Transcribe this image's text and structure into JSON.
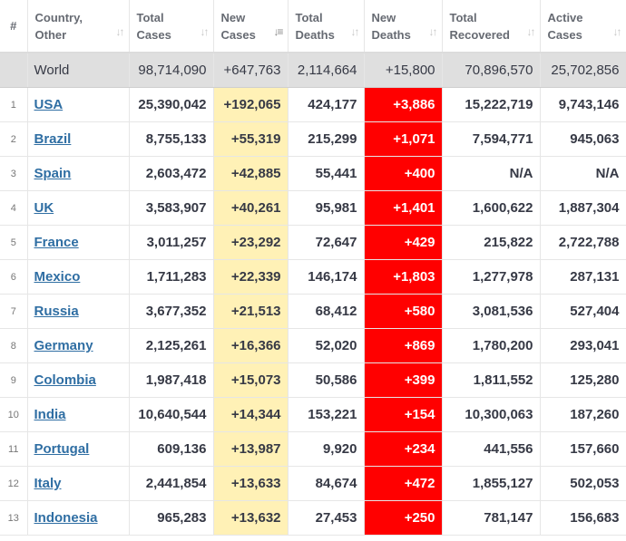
{
  "headers": {
    "index": "#",
    "country": [
      "Country,",
      "Other"
    ],
    "total_cases": [
      "Total",
      "Cases"
    ],
    "new_cases": [
      "New",
      "Cases"
    ],
    "total_deaths": [
      "Total",
      "Deaths"
    ],
    "new_deaths": [
      "New",
      "Deaths"
    ],
    "total_recovered": [
      "Total",
      "Recovered"
    ],
    "active_cases": [
      "Active",
      "Cases"
    ]
  },
  "world": {
    "country": "World",
    "total_cases": "98,714,090",
    "new_cases": "+647,763",
    "total_deaths": "2,114,664",
    "new_deaths": "+15,800",
    "total_recovered": "70,896,570",
    "active_cases": "25,702,856"
  },
  "rows": [
    {
      "idx": "1",
      "country": "USA",
      "total_cases": "25,390,042",
      "new_cases": "+192,065",
      "total_deaths": "424,177",
      "new_deaths": "+3,886",
      "total_recovered": "15,222,719",
      "active_cases": "9,743,146"
    },
    {
      "idx": "2",
      "country": "Brazil",
      "total_cases": "8,755,133",
      "new_cases": "+55,319",
      "total_deaths": "215,299",
      "new_deaths": "+1,071",
      "total_recovered": "7,594,771",
      "active_cases": "945,063"
    },
    {
      "idx": "3",
      "country": "Spain",
      "total_cases": "2,603,472",
      "new_cases": "+42,885",
      "total_deaths": "55,441",
      "new_deaths": "+400",
      "total_recovered": "N/A",
      "active_cases": "N/A"
    },
    {
      "idx": "4",
      "country": "UK",
      "total_cases": "3,583,907",
      "new_cases": "+40,261",
      "total_deaths": "95,981",
      "new_deaths": "+1,401",
      "total_recovered": "1,600,622",
      "active_cases": "1,887,304"
    },
    {
      "idx": "5",
      "country": "France",
      "total_cases": "3,011,257",
      "new_cases": "+23,292",
      "total_deaths": "72,647",
      "new_deaths": "+429",
      "total_recovered": "215,822",
      "active_cases": "2,722,788"
    },
    {
      "idx": "6",
      "country": "Mexico",
      "total_cases": "1,711,283",
      "new_cases": "+22,339",
      "total_deaths": "146,174",
      "new_deaths": "+1,803",
      "total_recovered": "1,277,978",
      "active_cases": "287,131"
    },
    {
      "idx": "7",
      "country": "Russia",
      "total_cases": "3,677,352",
      "new_cases": "+21,513",
      "total_deaths": "68,412",
      "new_deaths": "+580",
      "total_recovered": "3,081,536",
      "active_cases": "527,404"
    },
    {
      "idx": "8",
      "country": "Germany",
      "total_cases": "2,125,261",
      "new_cases": "+16,366",
      "total_deaths": "52,020",
      "new_deaths": "+869",
      "total_recovered": "1,780,200",
      "active_cases": "293,041"
    },
    {
      "idx": "9",
      "country": "Colombia",
      "total_cases": "1,987,418",
      "new_cases": "+15,073",
      "total_deaths": "50,586",
      "new_deaths": "+399",
      "total_recovered": "1,811,552",
      "active_cases": "125,280"
    },
    {
      "idx": "10",
      "country": "India",
      "total_cases": "10,640,544",
      "new_cases": "+14,344",
      "total_deaths": "153,221",
      "new_deaths": "+154",
      "total_recovered": "10,300,063",
      "active_cases": "187,260"
    },
    {
      "idx": "11",
      "country": "Portugal",
      "total_cases": "609,136",
      "new_cases": "+13,987",
      "total_deaths": "9,920",
      "new_deaths": "+234",
      "total_recovered": "441,556",
      "active_cases": "157,660"
    },
    {
      "idx": "12",
      "country": "Italy",
      "total_cases": "2,441,854",
      "new_cases": "+13,633",
      "total_deaths": "84,674",
      "new_deaths": "+472",
      "total_recovered": "1,855,127",
      "active_cases": "502,053"
    },
    {
      "idx": "13",
      "country": "Indonesia",
      "total_cases": "965,283",
      "new_cases": "+13,632",
      "total_deaths": "27,453",
      "new_deaths": "+250",
      "total_recovered": "781,147",
      "active_cases": "156,683"
    }
  ],
  "colors": {
    "new_cases_bg": "#fff1b6",
    "new_deaths_bg": "#ff0000",
    "world_row_bg": "#dfdfdf",
    "country_link": "#2f6ea3"
  },
  "icons": {
    "sort": "sort-arrows-icon",
    "sort_active": "sort-desc-icon"
  }
}
